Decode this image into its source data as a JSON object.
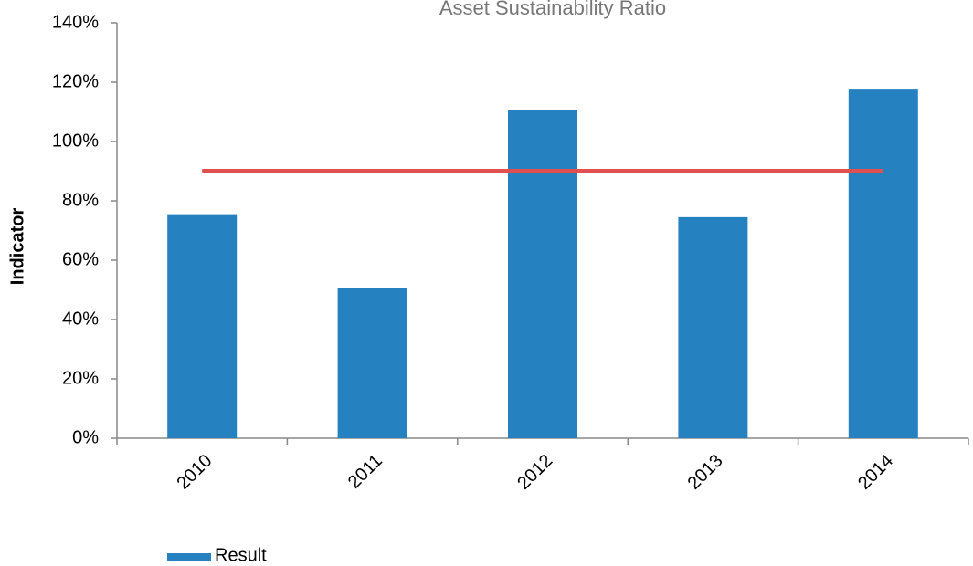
{
  "chart_data": {
    "type": "bar",
    "title": "Asset Sustainability Ratio",
    "y_label": "Indicator",
    "categories": [
      "2010",
      "2011",
      "2012",
      "2013",
      "2014"
    ],
    "series": [
      {
        "name": "Result",
        "type": "bar",
        "color": "#2681c1",
        "values": [
          75.5,
          50.5,
          110.5,
          74.5,
          117.5
        ]
      },
      {
        "type": "line",
        "color": "#e05050",
        "values": [
          90,
          90,
          90,
          90,
          90
        ]
      }
    ],
    "ylim": [
      0,
      140
    ],
    "yticks": [
      {
        "value": 0,
        "label": "0%"
      },
      {
        "value": 20,
        "label": "20%"
      },
      {
        "value": 40,
        "label": "40%"
      },
      {
        "value": 60,
        "label": "60%"
      },
      {
        "value": 80,
        "label": "80%"
      },
      {
        "value": 100,
        "label": "100%"
      },
      {
        "value": 120,
        "label": "120%"
      },
      {
        "value": 140,
        "label": "140%"
      }
    ],
    "grid": false,
    "legend": "bottom-left"
  }
}
